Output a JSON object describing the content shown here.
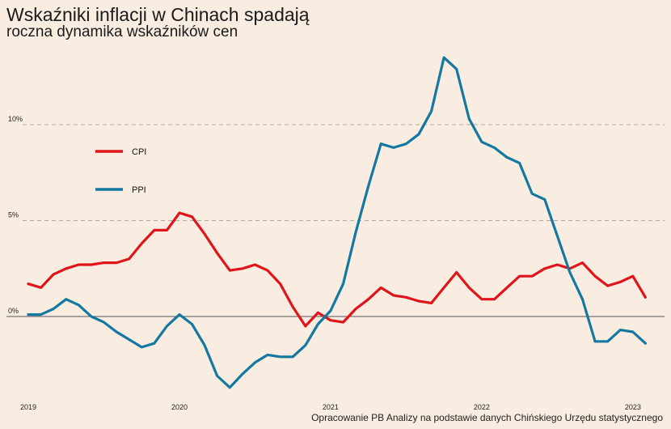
{
  "chart_data": {
    "type": "line",
    "title": "Wskaźniki inflacji w Chinach spadają",
    "subtitle": "roczna dynamika wskaźników cen",
    "source": "Opracowanie PB Analizy na podstawie danych Chińskiego Urzędu statystycznego",
    "xlim": [
      "2019-01",
      "2023-03"
    ],
    "ylim": [
      -3.8,
      13.8
    ],
    "x_ticks": [
      "2019",
      "2020",
      "2021",
      "2022",
      "2023"
    ],
    "y_ticks": [
      {
        "value": 0,
        "label": "0%"
      },
      {
        "value": 5,
        "label": "5%"
      },
      {
        "value": 10,
        "label": "10%"
      }
    ],
    "grid": "horizontal dashed",
    "legend_position": "upper-left",
    "x": [
      "2019-01",
      "2019-02",
      "2019-03",
      "2019-04",
      "2019-05",
      "2019-06",
      "2019-07",
      "2019-08",
      "2019-09",
      "2019-10",
      "2019-11",
      "2019-12",
      "2020-01",
      "2020-02",
      "2020-03",
      "2020-04",
      "2020-05",
      "2020-06",
      "2020-07",
      "2020-08",
      "2020-09",
      "2020-10",
      "2020-11",
      "2020-12",
      "2021-01",
      "2021-02",
      "2021-03",
      "2021-04",
      "2021-05",
      "2021-06",
      "2021-07",
      "2021-08",
      "2021-09",
      "2021-10",
      "2021-11",
      "2021-12",
      "2022-01",
      "2022-02",
      "2022-03",
      "2022-04",
      "2022-05",
      "2022-06",
      "2022-07",
      "2022-08",
      "2022-09",
      "2022-10",
      "2022-11",
      "2022-12",
      "2023-01",
      "2023-02"
    ],
    "series": [
      {
        "name": "CPI",
        "color": "#e0141b",
        "values": [
          1.7,
          1.5,
          2.2,
          2.5,
          2.7,
          2.7,
          2.8,
          2.8,
          3.0,
          3.8,
          4.5,
          4.5,
          5.4,
          5.2,
          4.3,
          3.3,
          2.4,
          2.5,
          2.7,
          2.4,
          1.7,
          0.5,
          -0.5,
          0.2,
          -0.2,
          -0.3,
          0.4,
          0.9,
          1.5,
          1.1,
          1.0,
          0.8,
          0.7,
          1.5,
          2.3,
          1.5,
          0.9,
          0.9,
          1.5,
          2.1,
          2.1,
          2.5,
          2.7,
          2.5,
          2.8,
          2.1,
          1.6,
          1.8,
          2.1,
          1.0
        ]
      },
      {
        "name": "PPI",
        "color": "#1478a0",
        "values": [
          0.1,
          0.1,
          0.4,
          0.9,
          0.6,
          0.0,
          -0.3,
          -0.8,
          -1.2,
          -1.6,
          -1.4,
          -0.5,
          0.1,
          -0.4,
          -1.5,
          -3.1,
          -3.7,
          -3.0,
          -2.4,
          -2.0,
          -2.1,
          -2.1,
          -1.5,
          -0.4,
          0.3,
          1.7,
          4.4,
          6.8,
          9.0,
          8.8,
          9.0,
          9.5,
          10.7,
          13.5,
          12.9,
          10.3,
          9.1,
          8.8,
          8.3,
          8.0,
          6.4,
          6.1,
          4.2,
          2.3,
          0.9,
          -1.3,
          -1.3,
          -0.7,
          -0.8,
          -1.4
        ]
      }
    ]
  }
}
